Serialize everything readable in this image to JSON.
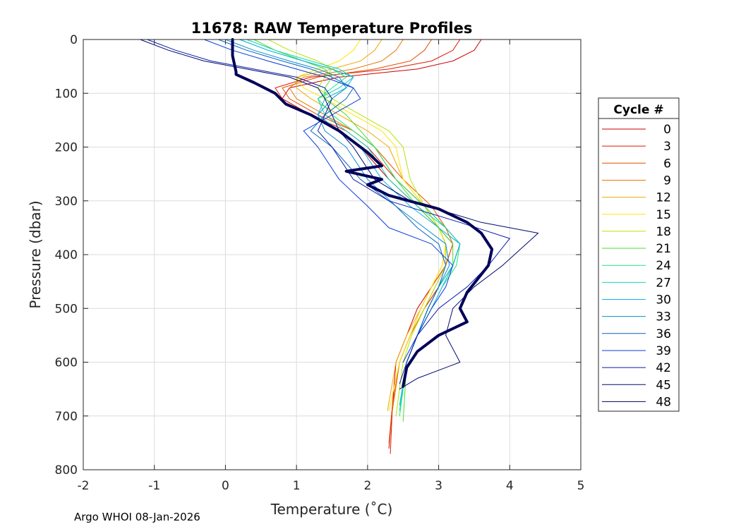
{
  "chart_data": {
    "type": "line",
    "title": "11678: RAW Temperature Profiles",
    "xlabel": "Temperature (˚C)",
    "ylabel": "Pressure (dbar)",
    "xlim": [
      -2,
      5
    ],
    "ylim": [
      800,
      0
    ],
    "y_inverted": true,
    "grid": true,
    "xticks": [
      -2,
      -1,
      0,
      1,
      2,
      3,
      4,
      5
    ],
    "yticks": [
      0,
      100,
      200,
      300,
      400,
      500,
      600,
      700,
      800
    ],
    "legend": {
      "title": "Cycle #",
      "placement": "outside-right",
      "entries": [
        {
          "label": "0",
          "color": "#cc0000"
        },
        {
          "label": "3",
          "color": "#dd1a00"
        },
        {
          "label": "6",
          "color": "#e64d00"
        },
        {
          "label": "9",
          "color": "#e67a00"
        },
        {
          "label": "12",
          "color": "#f0a800"
        },
        {
          "label": "15",
          "color": "#ffe600"
        },
        {
          "label": "18",
          "color": "#b4e600"
        },
        {
          "label": "21",
          "color": "#4ddc28"
        },
        {
          "label": "24",
          "color": "#1ee678"
        },
        {
          "label": "27",
          "color": "#14d2b4"
        },
        {
          "label": "30",
          "color": "#0ab4e6"
        },
        {
          "label": "33",
          "color": "#0a8cd2"
        },
        {
          "label": "36",
          "color": "#0a64be"
        },
        {
          "label": "39",
          "color": "#0a3cdc"
        },
        {
          "label": "42",
          "color": "#0a1eaa"
        },
        {
          "label": "45",
          "color": "#000a6e"
        },
        {
          "label": "48",
          "color": "#00005a"
        }
      ]
    },
    "series": [
      {
        "name": "0",
        "color": "#cc0000",
        "width": 1,
        "temperature": [
          3.6,
          3.5,
          3.2,
          2.7,
          1.6,
          0.9,
          0.8,
          1.2,
          1.6,
          1.9,
          2.3,
          2.7,
          3.0,
          3.2,
          3.1,
          2.9,
          2.7,
          2.55,
          2.4,
          2.35,
          2.3
        ],
        "pressure": [
          0,
          20,
          40,
          55,
          70,
          90,
          110,
          140,
          170,
          200,
          260,
          310,
          350,
          380,
          420,
          460,
          500,
          550,
          600,
          680,
          760
        ]
      },
      {
        "name": "3",
        "color": "#dd1a00",
        "width": 1,
        "temperature": [
          3.3,
          3.2,
          2.9,
          2.3,
          1.2,
          0.7,
          0.8,
          1.2,
          1.7,
          2.0,
          2.4,
          2.8,
          3.1,
          3.3,
          3.2,
          3.0,
          2.8,
          2.6,
          2.45,
          2.35,
          2.32
        ],
        "pressure": [
          0,
          20,
          40,
          55,
          70,
          90,
          110,
          140,
          170,
          200,
          260,
          310,
          350,
          380,
          420,
          460,
          500,
          550,
          600,
          680,
          770
        ]
      },
      {
        "name": "6",
        "color": "#e64d00",
        "width": 1,
        "temperature": [
          2.9,
          2.8,
          2.6,
          2.1,
          1.3,
          0.8,
          0.9,
          1.3,
          1.8,
          2.1,
          2.5,
          2.9,
          3.1,
          3.2,
          3.1,
          2.9,
          2.75,
          2.6,
          2.45,
          2.35,
          2.3
        ],
        "pressure": [
          0,
          20,
          40,
          55,
          70,
          90,
          110,
          140,
          170,
          200,
          260,
          310,
          350,
          380,
          420,
          460,
          500,
          550,
          600,
          680,
          750
        ]
      },
      {
        "name": "9",
        "color": "#e67a00",
        "width": 1,
        "temperature": [
          2.5,
          2.4,
          2.2,
          1.8,
          1.1,
          0.9,
          1.0,
          1.4,
          1.8,
          2.1,
          2.4,
          2.8,
          3.0,
          3.1,
          3.1,
          2.95,
          2.8,
          2.6,
          2.45,
          2.35
        ],
        "pressure": [
          0,
          20,
          40,
          55,
          70,
          90,
          110,
          140,
          170,
          200,
          260,
          310,
          350,
          380,
          420,
          460,
          500,
          550,
          600,
          690
        ]
      },
      {
        "name": "12",
        "color": "#f0a800",
        "width": 1,
        "temperature": [
          2.2,
          2.1,
          1.9,
          1.5,
          1.0,
          1.0,
          1.2,
          1.6,
          2.0,
          2.3,
          2.5,
          2.8,
          3.0,
          3.1,
          3.05,
          2.9,
          2.75,
          2.55,
          2.4,
          2.28
        ],
        "pressure": [
          0,
          20,
          40,
          55,
          70,
          90,
          110,
          140,
          170,
          200,
          260,
          310,
          350,
          380,
          420,
          460,
          500,
          550,
          600,
          690
        ]
      },
      {
        "name": "15",
        "color": "#ffe600",
        "width": 1,
        "temperature": [
          1.9,
          1.8,
          1.6,
          1.3,
          1.0,
          1.1,
          1.4,
          1.8,
          2.2,
          2.4,
          2.5,
          2.8,
          3.0,
          3.1,
          3.05,
          2.9,
          2.75,
          2.6,
          2.45,
          2.3
        ],
        "pressure": [
          0,
          20,
          40,
          55,
          70,
          90,
          110,
          140,
          170,
          200,
          260,
          310,
          350,
          380,
          420,
          460,
          500,
          550,
          600,
          690
        ]
      },
      {
        "name": "18",
        "color": "#b4e600",
        "width": 1,
        "temperature": [
          0.6,
          0.9,
          1.3,
          1.5,
          1.4,
          1.3,
          1.5,
          1.9,
          2.3,
          2.5,
          2.6,
          2.8,
          3.0,
          3.1,
          3.1,
          2.95,
          2.8,
          2.62,
          2.5,
          2.4
        ],
        "pressure": [
          0,
          20,
          40,
          55,
          70,
          90,
          110,
          140,
          170,
          200,
          260,
          310,
          350,
          380,
          420,
          460,
          500,
          550,
          600,
          700
        ]
      },
      {
        "name": "21",
        "color": "#4ddc28",
        "width": 1,
        "temperature": [
          0.4,
          0.7,
          1.1,
          1.4,
          1.5,
          1.4,
          1.4,
          1.7,
          1.9,
          2.1,
          2.4,
          2.7,
          3.0,
          3.2,
          3.2,
          3.0,
          2.85,
          2.7,
          2.55,
          2.5
        ],
        "pressure": [
          0,
          20,
          40,
          55,
          70,
          90,
          110,
          140,
          170,
          200,
          260,
          310,
          350,
          380,
          420,
          460,
          500,
          550,
          600,
          710
        ]
      },
      {
        "name": "24",
        "color": "#1ee678",
        "width": 1,
        "temperature": [
          0.2,
          0.6,
          1.1,
          1.5,
          1.7,
          1.5,
          1.3,
          1.5,
          1.8,
          2.1,
          2.4,
          2.8,
          3.1,
          3.3,
          3.25,
          3.05,
          2.9,
          2.7,
          2.55,
          2.45
        ],
        "pressure": [
          0,
          20,
          40,
          55,
          70,
          90,
          110,
          140,
          170,
          200,
          260,
          310,
          350,
          380,
          420,
          460,
          500,
          550,
          600,
          700
        ]
      },
      {
        "name": "27",
        "color": "#14d2b4",
        "width": 1,
        "temperature": [
          0.3,
          0.7,
          1.2,
          1.6,
          1.8,
          1.6,
          1.3,
          1.4,
          1.7,
          2.0,
          2.3,
          2.7,
          3.1,
          3.3,
          3.2,
          3.0,
          2.85,
          2.7,
          2.55,
          2.45
        ],
        "pressure": [
          0,
          20,
          40,
          55,
          70,
          90,
          110,
          140,
          170,
          200,
          260,
          310,
          350,
          380,
          420,
          460,
          500,
          550,
          600,
          690
        ]
      },
      {
        "name": "30",
        "color": "#0ab4e6",
        "width": 1,
        "temperature": [
          0.2,
          0.6,
          1.1,
          1.5,
          1.8,
          1.7,
          1.4,
          1.3,
          1.6,
          1.9,
          2.2,
          2.6,
          3.0,
          3.3,
          3.2,
          3.05,
          2.9,
          2.7,
          2.55,
          2.45
        ],
        "pressure": [
          0,
          20,
          40,
          55,
          70,
          90,
          110,
          140,
          170,
          200,
          260,
          310,
          350,
          380,
          420,
          460,
          500,
          550,
          600,
          680
        ]
      },
      {
        "name": "33",
        "color": "#0a8cd2",
        "width": 1,
        "temperature": [
          0.0,
          0.4,
          0.9,
          1.3,
          1.6,
          1.7,
          1.5,
          1.3,
          1.4,
          1.7,
          2.0,
          2.4,
          2.8,
          3.1,
          3.15,
          3.0,
          2.85,
          2.7,
          2.55
        ],
        "pressure": [
          0,
          20,
          40,
          55,
          70,
          90,
          110,
          140,
          170,
          200,
          260,
          310,
          350,
          380,
          420,
          460,
          500,
          550,
          600
        ]
      },
      {
        "name": "36",
        "color": "#0a64be",
        "width": 1,
        "temperature": [
          -0.1,
          0.3,
          0.8,
          1.2,
          1.5,
          1.8,
          1.7,
          1.4,
          1.2,
          1.5,
          1.9,
          2.4,
          2.7,
          3.0,
          3.1,
          3.0,
          2.85,
          2.7,
          2.55
        ],
        "pressure": [
          0,
          20,
          40,
          55,
          70,
          90,
          110,
          140,
          170,
          200,
          260,
          310,
          350,
          380,
          420,
          460,
          500,
          550,
          600
        ]
      },
      {
        "name": "39",
        "color": "#0a3cdc",
        "width": 1,
        "temperature": [
          -0.3,
          0.1,
          0.6,
          1.0,
          1.4,
          1.8,
          1.9,
          1.5,
          1.1,
          1.3,
          1.6,
          2.0,
          2.3,
          2.9,
          3.2,
          3.1,
          2.9,
          2.7,
          2.5
        ],
        "pressure": [
          0,
          20,
          40,
          55,
          70,
          90,
          110,
          140,
          170,
          200,
          260,
          310,
          350,
          380,
          420,
          460,
          500,
          550,
          600
        ]
      },
      {
        "name": "42",
        "color": "#0a1eaa",
        "width": 1,
        "temperature": [
          -1.1,
          -0.7,
          -0.2,
          0.4,
          1.0,
          1.4,
          1.5,
          1.4,
          1.3,
          1.5,
          1.8,
          2.3,
          3.3,
          4.0,
          3.7,
          3.4,
          3.0,
          2.7,
          2.55,
          2.45
        ],
        "pressure": [
          0,
          20,
          40,
          55,
          70,
          90,
          110,
          140,
          170,
          200,
          260,
          300,
          340,
          370,
          420,
          460,
          500,
          550,
          600,
          640
        ]
      },
      {
        "name": "45",
        "color": "#000a6e",
        "width": 1,
        "temperature": [
          -1.2,
          -0.8,
          -0.3,
          0.3,
          0.9,
          1.3,
          1.4,
          1.5,
          1.6,
          1.8,
          2.1,
          2.6,
          3.6,
          4.4,
          3.9,
          3.5,
          3.2,
          3.1,
          3.3,
          2.7,
          2.45
        ],
        "pressure": [
          0,
          20,
          40,
          55,
          70,
          90,
          110,
          140,
          170,
          200,
          260,
          300,
          340,
          360,
          420,
          460,
          500,
          550,
          600,
          630,
          650
        ]
      },
      {
        "name": "48",
        "color": "#00005a",
        "width": 4,
        "temperature": [
          0.1,
          0.1,
          0.15,
          0.15,
          0.4,
          0.7,
          0.85,
          1.2,
          1.6,
          2.0,
          2.2,
          1.7,
          2.2,
          2.0,
          2.3,
          3.0,
          3.4,
          3.6,
          3.75,
          3.7,
          3.4,
          3.3,
          3.4,
          3.0,
          2.7,
          2.55,
          2.5
        ],
        "pressure": [
          0,
          30,
          60,
          65,
          80,
          100,
          120,
          140,
          170,
          210,
          235,
          245,
          260,
          270,
          290,
          315,
          340,
          360,
          390,
          420,
          470,
          500,
          525,
          550,
          580,
          610,
          645
        ]
      }
    ]
  },
  "footer": {
    "text": "Argo WHOI 08-Jan-2026"
  }
}
